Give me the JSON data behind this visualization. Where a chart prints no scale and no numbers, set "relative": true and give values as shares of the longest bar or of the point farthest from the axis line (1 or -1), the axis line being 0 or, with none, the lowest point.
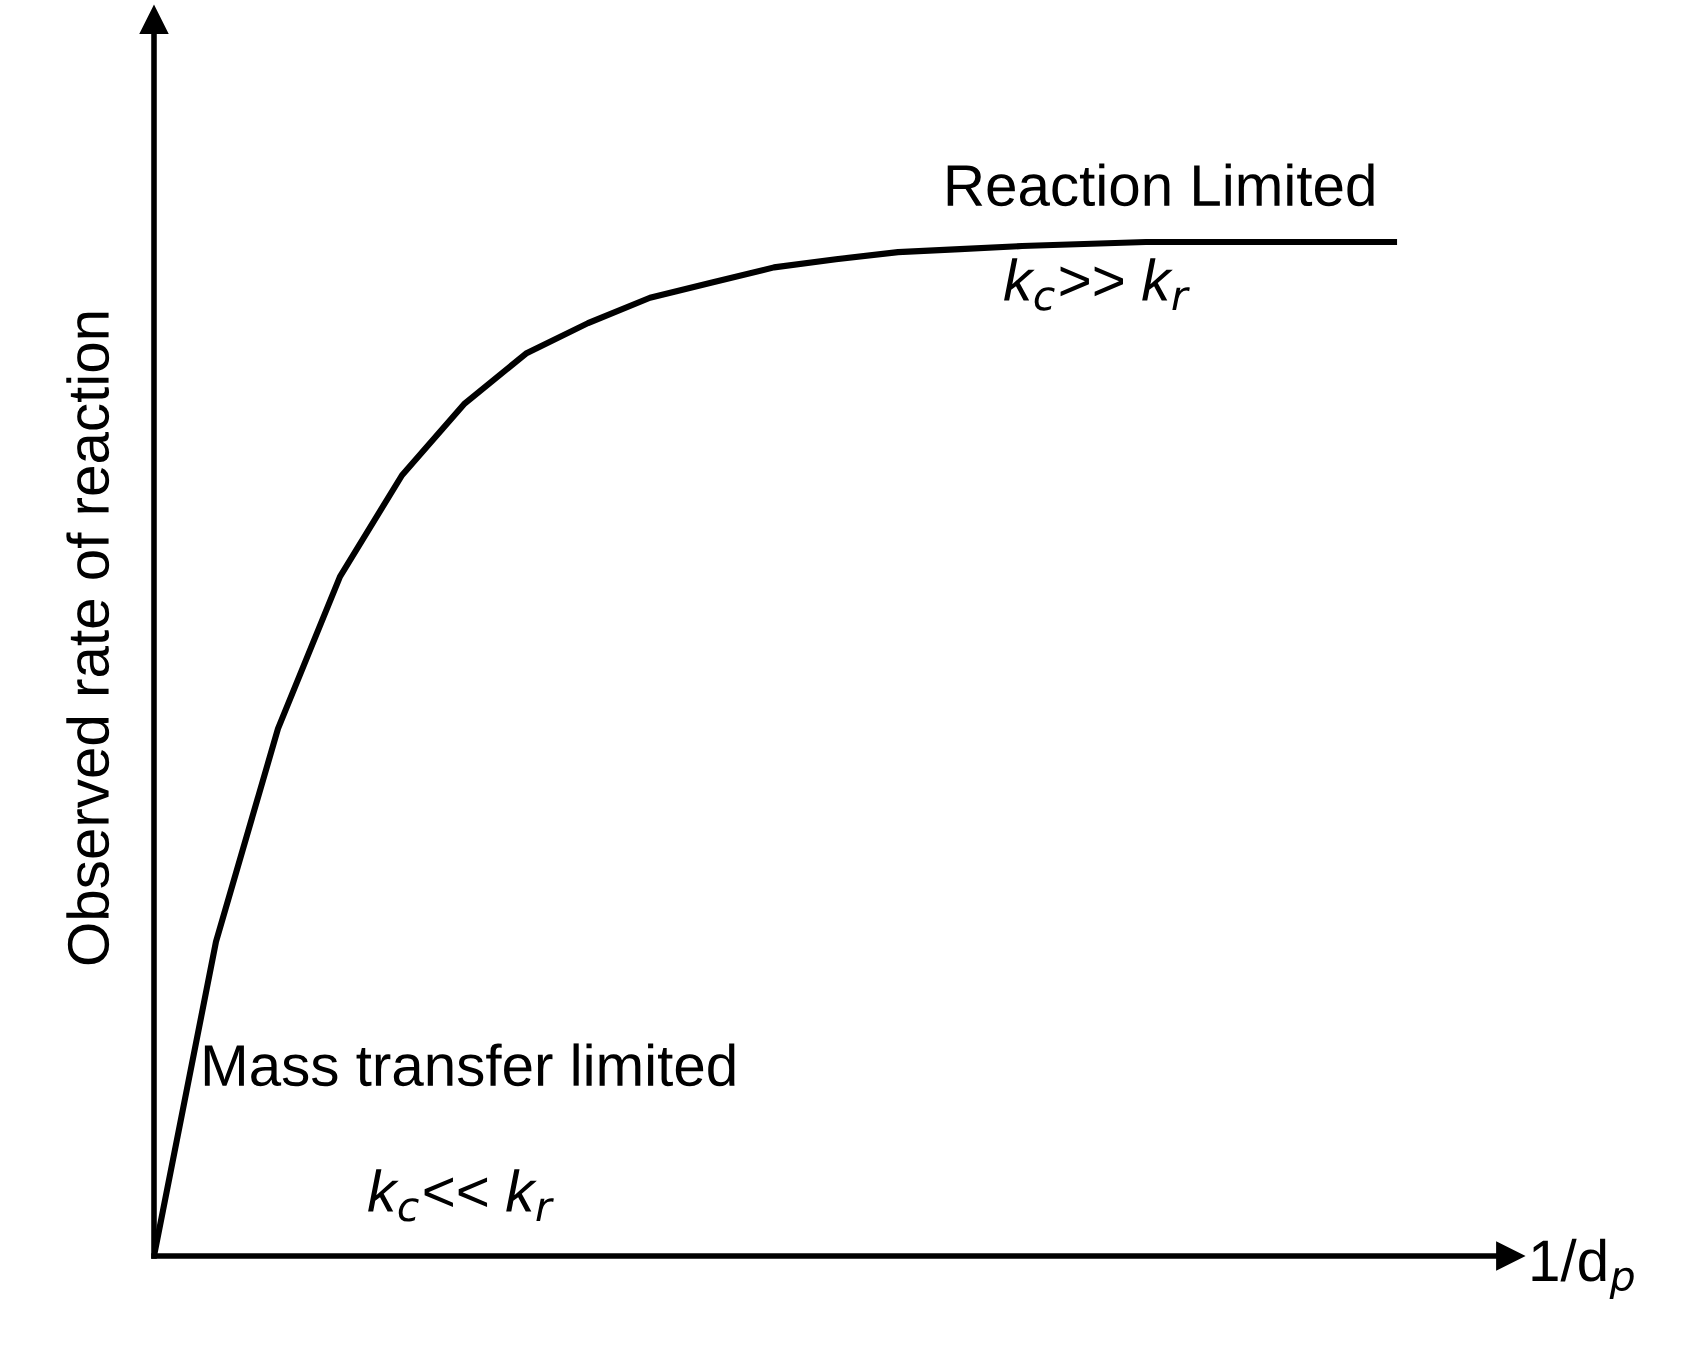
{
  "chart_data": {
    "type": "line",
    "relative": true,
    "xlabel": "1/d$_{p}$",
    "ylabel": "Observed rate of reaction",
    "categories": [
      null,
      null,
      null,
      null,
      null,
      null,
      null,
      null,
      null,
      null,
      null,
      null,
      null,
      null,
      null,
      null,
      null,
      null,
      null,
      null,
      null
    ],
    "series": [
      {
        "color": "#000000",
        "values": [
          0,
          0.31,
          0.52,
          0.67,
          0.77,
          0.84,
          0.89,
          0.92,
          0.945,
          0.96,
          0.975,
          0.983,
          0.99,
          0.993,
          0.996,
          0.998,
          1,
          1,
          1,
          1,
          1
        ]
      }
    ],
    "annotations": [
      "Reaction Limited",
      "k$_{c}$>> k$_{r}$",
      "Mass transfer limited",
      "k$_{c}$<< k$_{r}$"
    ],
    "grid": false,
    "legend": false,
    "marker": "none",
    "line_style": "solid"
  }
}
